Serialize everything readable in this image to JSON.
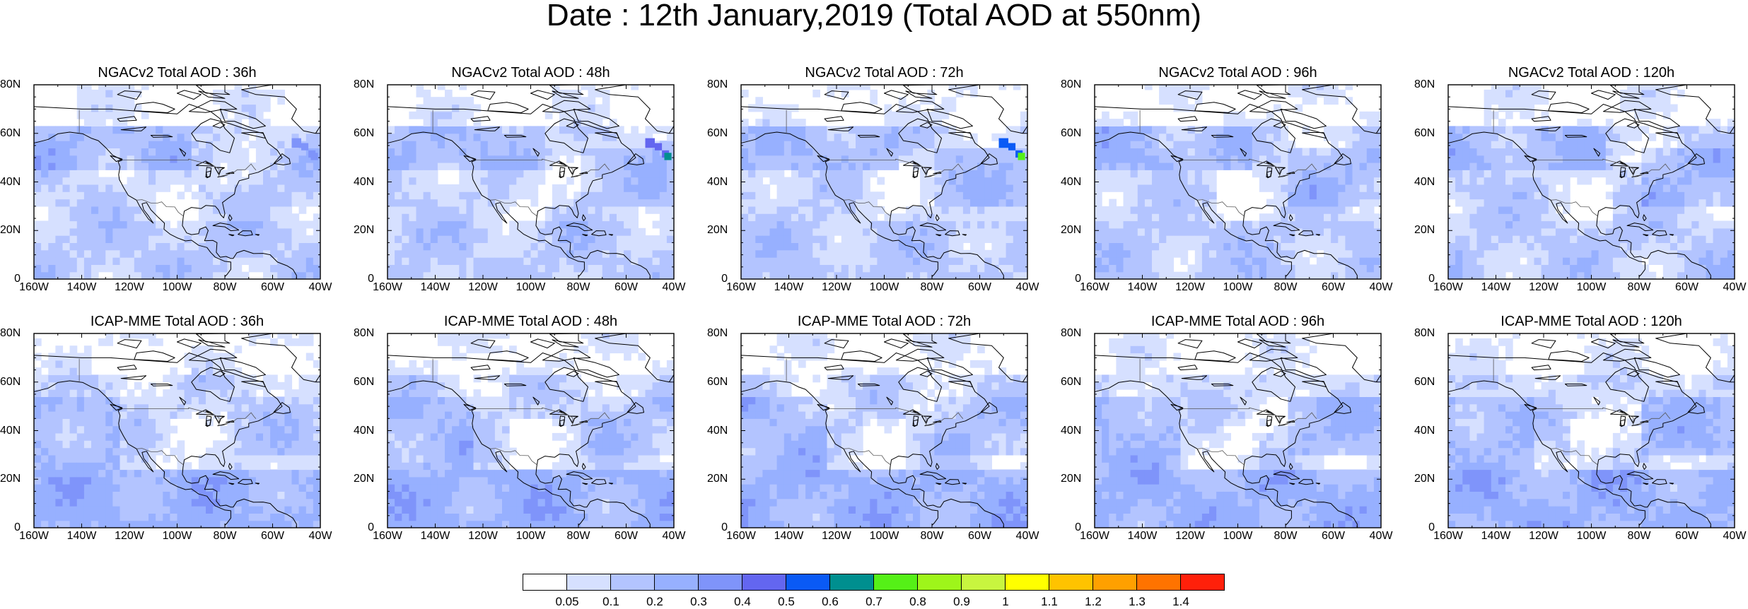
{
  "title": "Date : 12th January,2019 (Total AOD at 550nm)",
  "axes": {
    "lat_labels": [
      "80N",
      "60N",
      "40N",
      "20N",
      "0"
    ],
    "lon_labels": [
      "160W",
      "140W",
      "120W",
      "100W",
      "80W",
      "60W",
      "40W"
    ],
    "lat_range": [
      0,
      80
    ],
    "lon_range": [
      -160,
      -40
    ]
  },
  "rows": [
    {
      "model": "NGACv2",
      "panels": [
        {
          "title": "NGACv2 Total AOD : 36h",
          "hour": 36,
          "max_aod": 0.4
        },
        {
          "title": "NGACv2 Total AOD : 48h",
          "hour": 48,
          "max_aod": 0.7
        },
        {
          "title": "NGACv2 Total AOD : 72h",
          "hour": 72,
          "max_aod": 0.8
        },
        {
          "title": "NGACv2 Total AOD : 96h",
          "hour": 96,
          "max_aod": 0.3
        },
        {
          "title": "NGACv2 Total AOD : 120h",
          "hour": 120,
          "max_aod": 0.3
        }
      ]
    },
    {
      "model": "ICAP-MME",
      "panels": [
        {
          "title": "ICAP-MME Total AOD : 36h",
          "hour": 36,
          "max_aod": 0.3
        },
        {
          "title": "ICAP-MME Total AOD : 48h",
          "hour": 48,
          "max_aod": 0.2
        },
        {
          "title": "ICAP-MME Total AOD : 72h",
          "hour": 72,
          "max_aod": 0.3
        },
        {
          "title": "ICAP-MME Total AOD : 96h",
          "hour": 96,
          "max_aod": 0.3
        },
        {
          "title": "ICAP-MME Total AOD : 120h",
          "hour": 120,
          "max_aod": 0.3
        }
      ]
    }
  ],
  "colorbar": {
    "labels": [
      "0.05",
      "0.1",
      "0.2",
      "0.3",
      "0.4",
      "0.5",
      "0.6",
      "0.7",
      "0.8",
      "0.9",
      "1",
      "1.1",
      "1.2",
      "1.3",
      "1.4"
    ],
    "colors": [
      "#ffffff",
      "#d6e0ff",
      "#b3c4ff",
      "#97b0ff",
      "#7f94fa",
      "#6366f0",
      "#0a5af5",
      "#008f8f",
      "#55f017",
      "#9ef51a",
      "#c8f53f",
      "#ffff00",
      "#ffc300",
      "#ffa000",
      "#ff7300",
      "#ff200a"
    ]
  }
}
